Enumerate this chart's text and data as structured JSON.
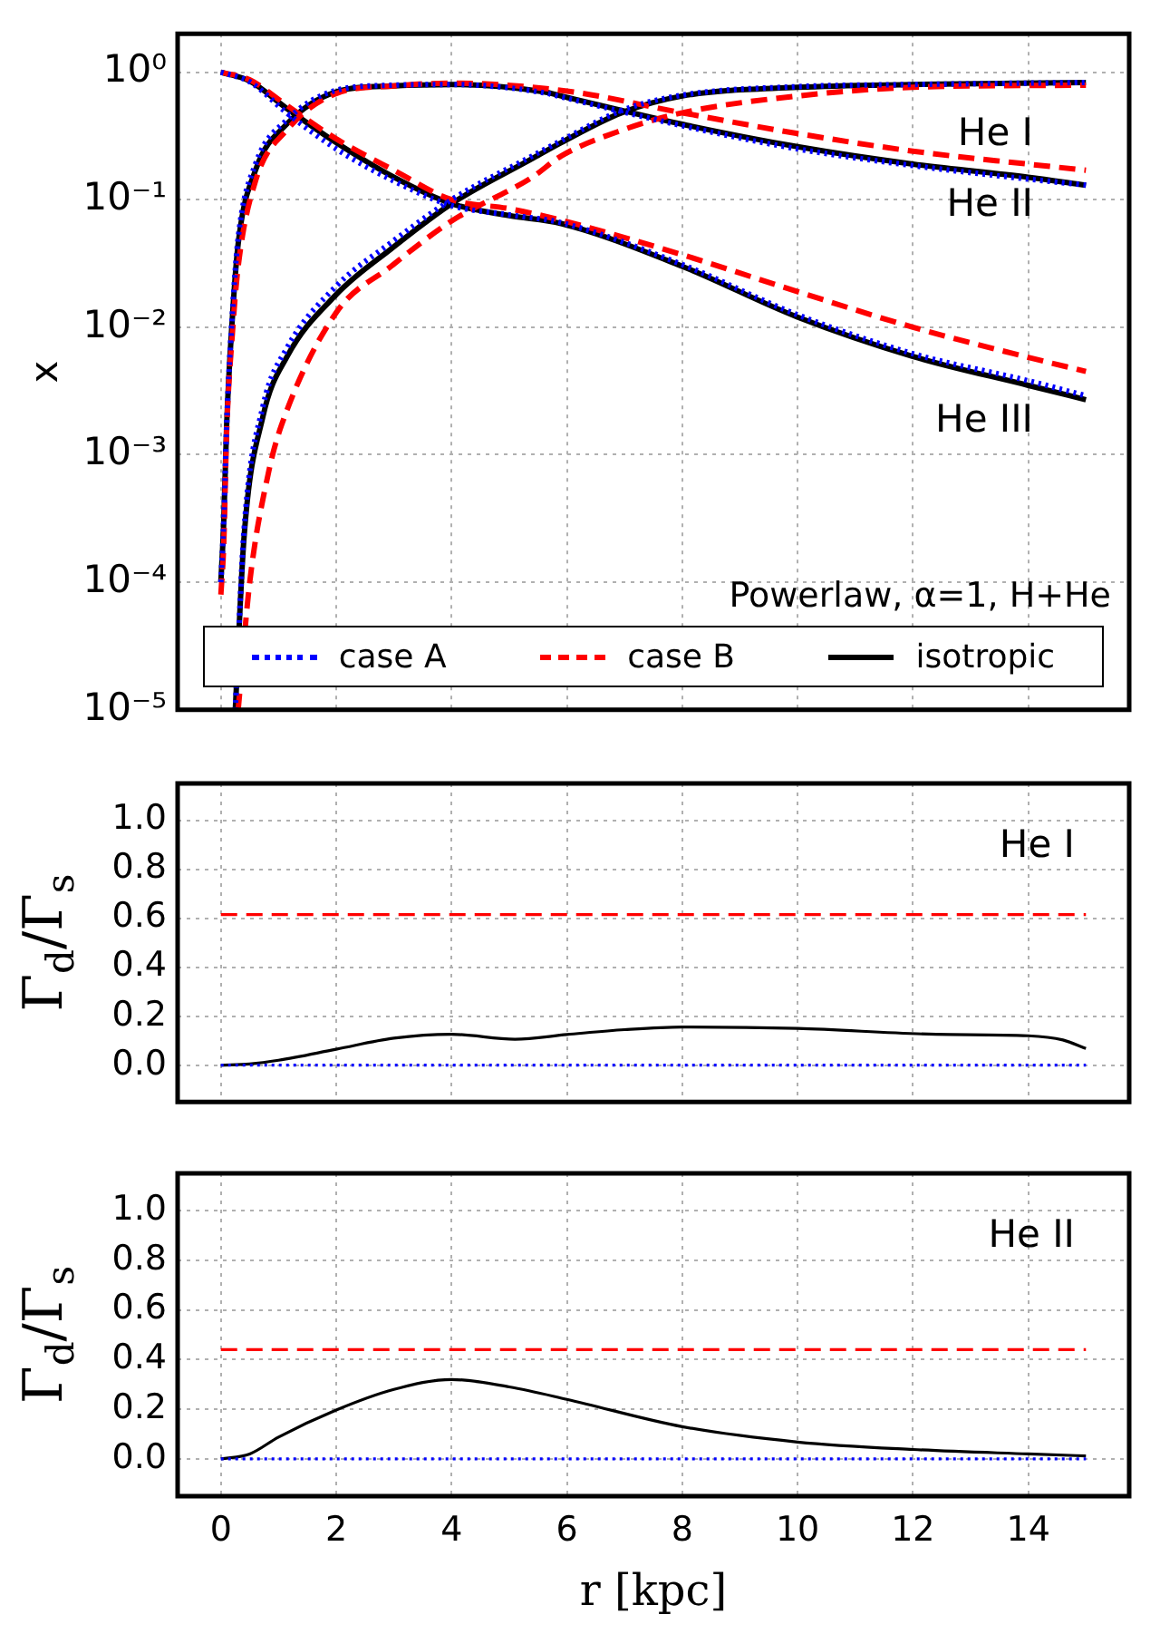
{
  "chart_data": [
    {
      "type": "line",
      "ylabel": "x",
      "log": "y",
      "grid": true,
      "legend": "bottom",
      "tick_labels": "y",
      "xlim": [
        -0.75,
        15.75
      ],
      "xticks": [
        0,
        2,
        4,
        6,
        8,
        10,
        12,
        14
      ],
      "ylim": [
        1e-05,
        2
      ],
      "yticks": [
        {
          "value": 1e-05,
          "label": "10⁻⁵"
        },
        {
          "value": 0.0001,
          "label": "10⁻⁴"
        },
        {
          "value": 0.001,
          "label": "10⁻³"
        },
        {
          "value": 0.01,
          "label": "10⁻²"
        },
        {
          "value": 0.1,
          "label": "10⁻¹"
        },
        {
          "value": 1,
          "label": "10⁰"
        }
      ],
      "annotations": [
        "Powerlaw, α=1, H+He",
        "He I",
        "He II",
        "He III"
      ],
      "series": [
        {
          "name": "case A",
          "color": "#0000ff",
          "line_style": "dotted",
          "x": [
            0.25,
            0.4,
            0.73,
            1.14,
            2,
            2.95,
            4,
            5.4,
            5.9,
            6.95,
            8,
            10,
            12,
            15
          ],
          "values": [
            1e-05,
            0.00025,
            0.0024,
            0.0068,
            0.021,
            0.046,
            0.1,
            0.22,
            0.29,
            0.5,
            0.66,
            0.77,
            0.8,
            0.83
          ]
        },
        {
          "color": "#0000ff",
          "line_style": "dotted",
          "x": [
            0,
            0.05,
            0.1,
            0.2,
            0.3,
            0.6,
            1.14,
            2,
            3,
            4,
            5.6,
            5.9,
            8,
            10,
            12,
            14,
            15
          ],
          "values": [
            0.0001,
            0.0003,
            0.0017,
            0.013,
            0.05,
            0.19,
            0.42,
            0.72,
            0.79,
            0.8,
            0.69,
            0.64,
            0.38,
            0.25,
            0.185,
            0.145,
            0.13
          ]
        },
        {
          "color": "#0000ff",
          "line_style": "dotted",
          "x": [
            0,
            0.5,
            1.14,
            2,
            3,
            4,
            5,
            5.9,
            8,
            10,
            12,
            14,
            15
          ],
          "values": [
            1,
            0.84,
            0.48,
            0.25,
            0.14,
            0.09,
            0.076,
            0.066,
            0.031,
            0.0125,
            0.0062,
            0.0038,
            0.0029
          ]
        },
        {
          "name": "case B",
          "color": "#ff0000",
          "line_style": "dashed",
          "x": [
            0.3,
            0.5,
            0.83,
            1.05,
            2,
            2.95,
            4,
            5.4,
            5.9,
            6.95,
            8,
            10,
            12,
            15
          ],
          "values": [
            1e-05,
            0.0001,
            0.00074,
            0.0017,
            0.013,
            0.03,
            0.068,
            0.15,
            0.22,
            0.35,
            0.48,
            0.65,
            0.76,
            0.79
          ]
        },
        {
          "color": "#ff0000",
          "line_style": "dashed",
          "x": [
            0,
            0.05,
            0.1,
            0.2,
            0.3,
            0.6,
            1.14,
            2,
            3,
            4,
            6,
            8,
            10,
            12,
            14,
            15
          ],
          "values": [
            8e-05,
            0.0002,
            0.0015,
            0.009,
            0.03,
            0.14,
            0.35,
            0.68,
            0.78,
            0.82,
            0.71,
            0.48,
            0.33,
            0.24,
            0.19,
            0.17
          ]
        },
        {
          "color": "#ff0000",
          "line_style": "dashed",
          "x": [
            0,
            0.5,
            1.14,
            2,
            3,
            4,
            5,
            5.9,
            8,
            10,
            12,
            14,
            15
          ],
          "values": [
            1,
            0.87,
            0.55,
            0.3,
            0.17,
            0.1,
            0.085,
            0.069,
            0.037,
            0.019,
            0.01,
            0.0058,
            0.0045
          ]
        },
        {
          "name": "isotropic",
          "color": "#000000",
          "line_style": "solid",
          "x": [
            0.25,
            0.4,
            0.73,
            1.14,
            2,
            2.95,
            4,
            5.4,
            5.9,
            6.95,
            8,
            10,
            12,
            15
          ],
          "values": [
            1e-05,
            0.00022,
            0.002,
            0.0058,
            0.018,
            0.041,
            0.093,
            0.21,
            0.28,
            0.48,
            0.65,
            0.76,
            0.8,
            0.83
          ]
        },
        {
          "color": "#000000",
          "line_style": "solid",
          "x": [
            0,
            0.05,
            0.1,
            0.2,
            0.3,
            0.6,
            1.14,
            2,
            3,
            4,
            5.6,
            5.9,
            8,
            10,
            12,
            14,
            15
          ],
          "values": [
            0.0001,
            0.0003,
            0.0017,
            0.012,
            0.045,
            0.17,
            0.39,
            0.7,
            0.78,
            0.8,
            0.7,
            0.65,
            0.39,
            0.26,
            0.19,
            0.15,
            0.13
          ]
        },
        {
          "color": "#000000",
          "line_style": "solid",
          "x": [
            0,
            0.5,
            1.14,
            2,
            3,
            4,
            5,
            5.9,
            8,
            10,
            12,
            14,
            15
          ],
          "values": [
            1,
            0.85,
            0.52,
            0.28,
            0.15,
            0.093,
            0.075,
            0.065,
            0.03,
            0.012,
            0.0059,
            0.0035,
            0.0027
          ]
        }
      ]
    },
    {
      "type": "line",
      "ylabel": "Γ$_{d}$/Γ$_{s}$",
      "grid": true,
      "tick_labels": "y",
      "xlim": [
        -0.75,
        15.75
      ],
      "xticks": [
        0,
        2,
        4,
        6,
        8,
        10,
        12,
        14
      ],
      "ylim": [
        -0.15,
        1.15
      ],
      "yticks": [
        {
          "value": 0,
          "label": "0.0"
        },
        0.2,
        0.4,
        0.6,
        0.8,
        {
          "value": 1,
          "label": "1.0"
        }
      ],
      "annotations": [
        "He I"
      ],
      "series": [
        {
          "color": "#0000ff",
          "line_style": "dotted",
          "x": [
            0,
            15
          ],
          "values": [
            0,
            0
          ]
        },
        {
          "color": "#ff0000",
          "line_style": "dashed",
          "x": [
            0,
            15
          ],
          "values": [
            0.615,
            0.615
          ]
        },
        {
          "color": "#000000",
          "line_style": "solid",
          "x": [
            0,
            0.5,
            1,
            2,
            3,
            4,
            5.1,
            6,
            7,
            8,
            10,
            12.4,
            14,
            14.6,
            15
          ],
          "values": [
            0,
            0.005,
            0.02,
            0.065,
            0.11,
            0.126,
            0.106,
            0.125,
            0.145,
            0.156,
            0.15,
            0.126,
            0.12,
            0.103,
            0.068
          ]
        }
      ]
    },
    {
      "type": "line",
      "ylabel": "Γ$_{d}$/Γ$_{s}$",
      "xlabel": "r [kpc]",
      "grid": true,
      "xlim": [
        -0.75,
        15.75
      ],
      "xticks": [
        0,
        2,
        4,
        6,
        8,
        10,
        12,
        14
      ],
      "ylim": [
        -0.15,
        1.15
      ],
      "yticks": [
        {
          "value": 0,
          "label": "0.0"
        },
        0.2,
        0.4,
        0.6,
        0.8,
        {
          "value": 1,
          "label": "1.0"
        }
      ],
      "annotations": [
        "He II"
      ],
      "series": [
        {
          "color": "#0000ff",
          "line_style": "dotted",
          "x": [
            0,
            15
          ],
          "values": [
            0,
            0
          ]
        },
        {
          "color": "#ff0000",
          "line_style": "dashed",
          "x": [
            0,
            15
          ],
          "values": [
            0.44,
            0.44
          ]
        },
        {
          "color": "#000000",
          "line_style": "solid",
          "x": [
            0,
            0.5,
            1,
            2,
            3,
            4,
            5,
            6,
            8,
            10,
            12,
            14,
            15
          ],
          "values": [
            0,
            0.02,
            0.088,
            0.197,
            0.28,
            0.32,
            0.29,
            0.24,
            0.13,
            0.068,
            0.038,
            0.02,
            0.012
          ]
        }
      ]
    }
  ]
}
